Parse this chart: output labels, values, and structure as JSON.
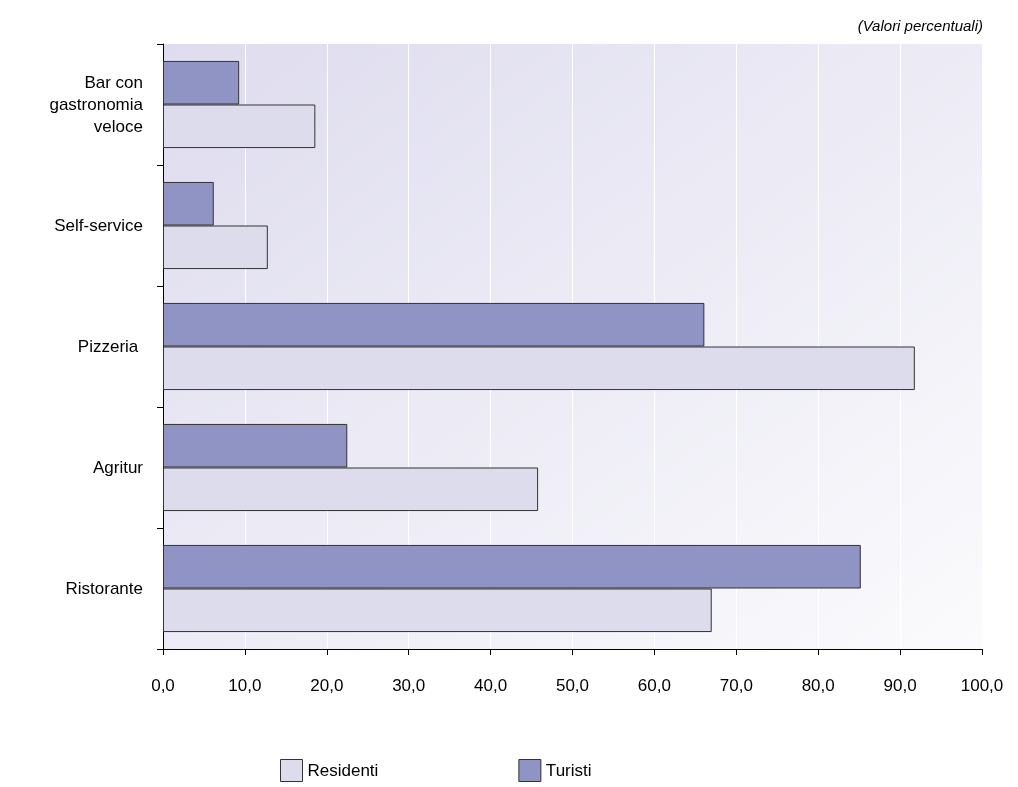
{
  "chart_data": {
    "type": "bar",
    "orientation": "horizontal",
    "categories": [
      "Bar con\ngastronomia\nveloce",
      "Self-service",
      "Pizzeria ",
      "Agritur",
      "Ristorante"
    ],
    "series": [
      {
        "name": "Residenti",
        "color": "#dcdcec",
        "values": [
          18.6,
          12.8,
          91.8,
          45.8,
          67.0
        ]
      },
      {
        "name": "Turisti",
        "color": "#8f94c4",
        "values": [
          9.3,
          6.2,
          66.1,
          22.5,
          85.2
        ]
      }
    ],
    "xlim": [
      0,
      100
    ],
    "xticks": [
      {
        "value": 0,
        "label": "0,0"
      },
      {
        "value": 10,
        "label": "10,0"
      },
      {
        "value": 20,
        "label": "20,0"
      },
      {
        "value": 30,
        "label": "30,0"
      },
      {
        "value": 40,
        "label": "40,0"
      },
      {
        "value": 50,
        "label": "50,0"
      },
      {
        "value": 60,
        "label": "60,0"
      },
      {
        "value": 70,
        "label": "70,0"
      },
      {
        "value": 80,
        "label": "80,0"
      },
      {
        "value": 90,
        "label": "90,0"
      },
      {
        "value": 100,
        "label": "100,0"
      }
    ],
    "grid": "x",
    "legend": "bottom",
    "annotations": [
      "(Valori percentuali)"
    ]
  }
}
